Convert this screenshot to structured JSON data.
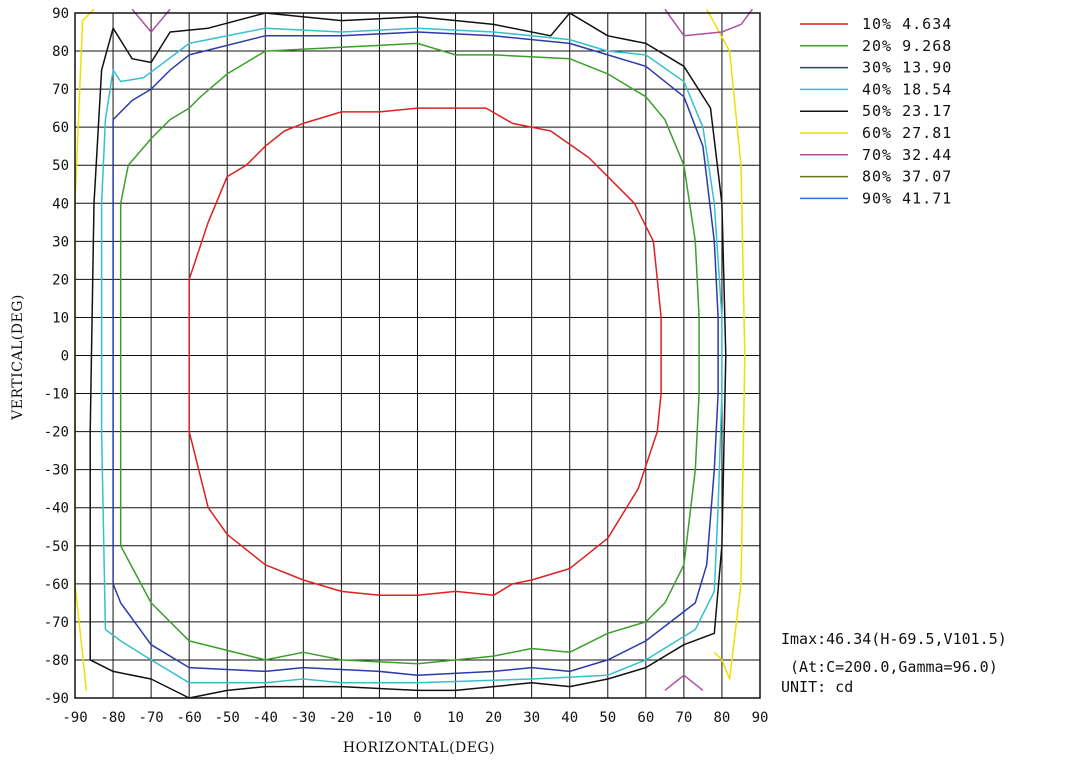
{
  "chart_data": {
    "type": "contour",
    "xlabel": "HORIZONTAL(DEG)",
    "ylabel": "VERTICAL(DEG)",
    "xlim": [
      -90,
      90
    ],
    "ylim": [
      -90,
      90
    ],
    "grid": true,
    "xticks": [
      "-90",
      "-80",
      "-70",
      "-60",
      "-50",
      "-40",
      "-30",
      "-20",
      "-10",
      "0",
      "10",
      "20",
      "30",
      "40",
      "50",
      "60",
      "70",
      "80",
      "90"
    ],
    "yticks": [
      "90",
      "80",
      "70",
      "60",
      "50",
      "40",
      "30",
      "20",
      "10",
      "0",
      "-10",
      "-20",
      "-30",
      "-40",
      "-50",
      "-60",
      "-70",
      "-80",
      "-90"
    ],
    "legend_position": "top-right",
    "series": [
      {
        "name": "10% 4.634",
        "color": "#e02020",
        "points": [
          [
            -60,
            -10
          ],
          [
            -60,
            20
          ],
          [
            -55,
            35
          ],
          [
            -50,
            47
          ],
          [
            -45,
            50
          ],
          [
            -40,
            55
          ],
          [
            -35,
            59
          ],
          [
            -30,
            61
          ],
          [
            -20,
            64
          ],
          [
            -10,
            64
          ],
          [
            0,
            65
          ],
          [
            10,
            65
          ],
          [
            18,
            65
          ],
          [
            25,
            61
          ],
          [
            35,
            59
          ],
          [
            45,
            52
          ],
          [
            55,
            42
          ],
          [
            57,
            40
          ],
          [
            62,
            30
          ],
          [
            63,
            20
          ],
          [
            64,
            10
          ],
          [
            64,
            -10
          ],
          [
            63,
            -20
          ],
          [
            58,
            -35
          ],
          [
            50,
            -48
          ],
          [
            40,
            -56
          ],
          [
            30,
            -59
          ],
          [
            25,
            -60
          ],
          [
            20,
            -63
          ],
          [
            10,
            -62
          ],
          [
            0,
            -63
          ],
          [
            -10,
            -63
          ],
          [
            -20,
            -62
          ],
          [
            -30,
            -59
          ],
          [
            -40,
            -55
          ],
          [
            -50,
            -47
          ],
          [
            -55,
            -40
          ],
          [
            -60,
            -20
          ],
          [
            -60,
            -10
          ]
        ]
      },
      {
        "name": "20% 9.268",
        "color": "#3aa02a",
        "points": [
          [
            -78,
            -50
          ],
          [
            -78,
            40
          ],
          [
            -76,
            50
          ],
          [
            -70,
            57
          ],
          [
            -65,
            62
          ],
          [
            -60,
            65
          ],
          [
            -57,
            68
          ],
          [
            -50,
            74
          ],
          [
            -40,
            80
          ],
          [
            -20,
            81
          ],
          [
            0,
            82
          ],
          [
            10,
            79
          ],
          [
            20,
            79
          ],
          [
            40,
            78
          ],
          [
            50,
            74
          ],
          [
            60,
            68
          ],
          [
            65,
            62
          ],
          [
            70,
            50
          ],
          [
            73,
            30
          ],
          [
            74,
            10
          ],
          [
            74,
            -10
          ],
          [
            73,
            -30
          ],
          [
            70,
            -55
          ],
          [
            65,
            -65
          ],
          [
            60,
            -70
          ],
          [
            50,
            -73
          ],
          [
            40,
            -78
          ],
          [
            30,
            -77
          ],
          [
            20,
            -79
          ],
          [
            0,
            -81
          ],
          [
            -20,
            -80
          ],
          [
            -30,
            -78
          ],
          [
            -40,
            -80
          ],
          [
            -60,
            -75
          ],
          [
            -70,
            -65
          ],
          [
            -78,
            -50
          ]
        ]
      },
      {
        "name": "30% 13.90",
        "color": "#2a3caa",
        "points": [
          [
            -80,
            -60
          ],
          [
            -80,
            62
          ],
          [
            -75,
            67
          ],
          [
            -70,
            70
          ],
          [
            -65,
            75
          ],
          [
            -60,
            79
          ],
          [
            -40,
            84
          ],
          [
            -20,
            84
          ],
          [
            0,
            85
          ],
          [
            20,
            84
          ],
          [
            40,
            82
          ],
          [
            50,
            79
          ],
          [
            60,
            76
          ],
          [
            70,
            68
          ],
          [
            75,
            55
          ],
          [
            78,
            30
          ],
          [
            79,
            10
          ],
          [
            79,
            -10
          ],
          [
            78,
            -30
          ],
          [
            76,
            -55
          ],
          [
            73,
            -65
          ],
          [
            60,
            -75
          ],
          [
            50,
            -80
          ],
          [
            40,
            -83
          ],
          [
            30,
            -82
          ],
          [
            20,
            -83
          ],
          [
            0,
            -84
          ],
          [
            -10,
            -83
          ],
          [
            -30,
            -82
          ],
          [
            -40,
            -83
          ],
          [
            -60,
            -82
          ],
          [
            -70,
            -76
          ],
          [
            -78,
            -65
          ],
          [
            -80,
            -60
          ]
        ]
      },
      {
        "name": "40% 18.54",
        "color": "#36c0cc",
        "points": [
          [
            -82,
            -72
          ],
          [
            -83,
            -20
          ],
          [
            -83,
            40
          ],
          [
            -82,
            62
          ],
          [
            -80,
            75
          ],
          [
            -78,
            72
          ],
          [
            -72,
            73
          ],
          [
            -68,
            76
          ],
          [
            -60,
            82
          ],
          [
            -40,
            86
          ],
          [
            -20,
            85
          ],
          [
            0,
            86
          ],
          [
            20,
            85
          ],
          [
            40,
            83
          ],
          [
            50,
            80
          ],
          [
            60,
            79
          ],
          [
            70,
            72
          ],
          [
            75,
            60
          ],
          [
            78,
            40
          ],
          [
            80,
            10
          ],
          [
            80,
            -10
          ],
          [
            79,
            -40
          ],
          [
            78,
            -62
          ],
          [
            73,
            -72
          ],
          [
            60,
            -80
          ],
          [
            50,
            -84
          ],
          [
            30,
            -85
          ],
          [
            0,
            -86
          ],
          [
            -20,
            -86
          ],
          [
            -30,
            -85
          ],
          [
            -40,
            -86
          ],
          [
            -60,
            -86
          ],
          [
            -70,
            -80
          ],
          [
            -78,
            -75
          ],
          [
            -82,
            -72
          ]
        ]
      },
      {
        "name": "50% 23.17",
        "color": "#111111",
        "points": [
          [
            -86,
            -80
          ],
          [
            -86,
            -20
          ],
          [
            -85,
            40
          ],
          [
            -83,
            75
          ],
          [
            -80,
            86
          ],
          [
            -75,
            78
          ],
          [
            -70,
            77
          ],
          [
            -65,
            85
          ],
          [
            -55,
            86
          ],
          [
            -40,
            90
          ],
          [
            -20,
            88
          ],
          [
            0,
            89
          ],
          [
            20,
            87
          ],
          [
            35,
            84
          ],
          [
            40,
            90
          ],
          [
            50,
            84
          ],
          [
            60,
            82
          ],
          [
            70,
            76
          ],
          [
            77,
            65
          ],
          [
            80,
            40
          ],
          [
            81,
            0
          ],
          [
            80,
            -50
          ],
          [
            78,
            -73
          ],
          [
            70,
            -76
          ],
          [
            60,
            -82
          ],
          [
            50,
            -85
          ],
          [
            40,
            -87
          ],
          [
            30,
            -86
          ],
          [
            10,
            -88
          ],
          [
            0,
            -88
          ],
          [
            -20,
            -87
          ],
          [
            -40,
            -87
          ],
          [
            -50,
            -88
          ],
          [
            -60,
            -90
          ],
          [
            -70,
            -85
          ],
          [
            -80,
            -83
          ],
          [
            -86,
            -80
          ]
        ]
      },
      {
        "name": "60% 27.81",
        "color": "#f0e000",
        "points": [
          [
            -87,
            -88
          ],
          [
            -90,
            -60
          ],
          [
            -90,
            40
          ],
          [
            -88,
            88
          ],
          [
            -85,
            91
          ]
        ]
      },
      {
        "name": "60% 27.81 (right)",
        "color": "#f0e000",
        "points": [
          [
            76,
            91
          ],
          [
            82,
            80
          ],
          [
            85,
            50
          ],
          [
            86,
            0
          ],
          [
            85,
            -60
          ],
          [
            82,
            -85
          ],
          [
            80,
            -80
          ],
          [
            78,
            -78
          ]
        ]
      },
      {
        "name": "70% 32.44",
        "color": "#b050a0",
        "points": [
          [
            -75,
            91
          ],
          [
            -70,
            85
          ],
          [
            -65,
            91
          ]
        ]
      },
      {
        "name": "70% 32.44 (tr)",
        "color": "#b050a0",
        "points": [
          [
            65,
            91
          ],
          [
            70,
            84
          ],
          [
            80,
            85
          ],
          [
            85,
            87
          ],
          [
            88,
            91
          ]
        ]
      },
      {
        "name": "70% 32.44 (br)",
        "color": "#b050a0",
        "points": [
          [
            65,
            -88
          ],
          [
            70,
            -84
          ],
          [
            75,
            -88
          ]
        ]
      }
    ],
    "legend": [
      {
        "label": "10% 4.634",
        "color": "#e02020"
      },
      {
        "label": "20% 9.268",
        "color": "#3aa02a"
      },
      {
        "label": "30% 13.90",
        "color": "#2a3caa"
      },
      {
        "label": "40% 18.54",
        "color": "#36c0cc"
      },
      {
        "label": "50% 23.17",
        "color": "#111111"
      },
      {
        "label": "60% 27.81",
        "color": "#f0e000"
      },
      {
        "label": "70% 32.44",
        "color": "#b050a0"
      },
      {
        "label": "80% 37.07",
        "color": "#6a7a10"
      },
      {
        "label": "90% 41.71",
        "color": "#3a6ae0"
      }
    ],
    "info": [
      "Imax:46.34(H-69.5,V101.5)",
      " (At:C=200.0,Gamma=96.0)",
      "UNIT: cd"
    ]
  }
}
